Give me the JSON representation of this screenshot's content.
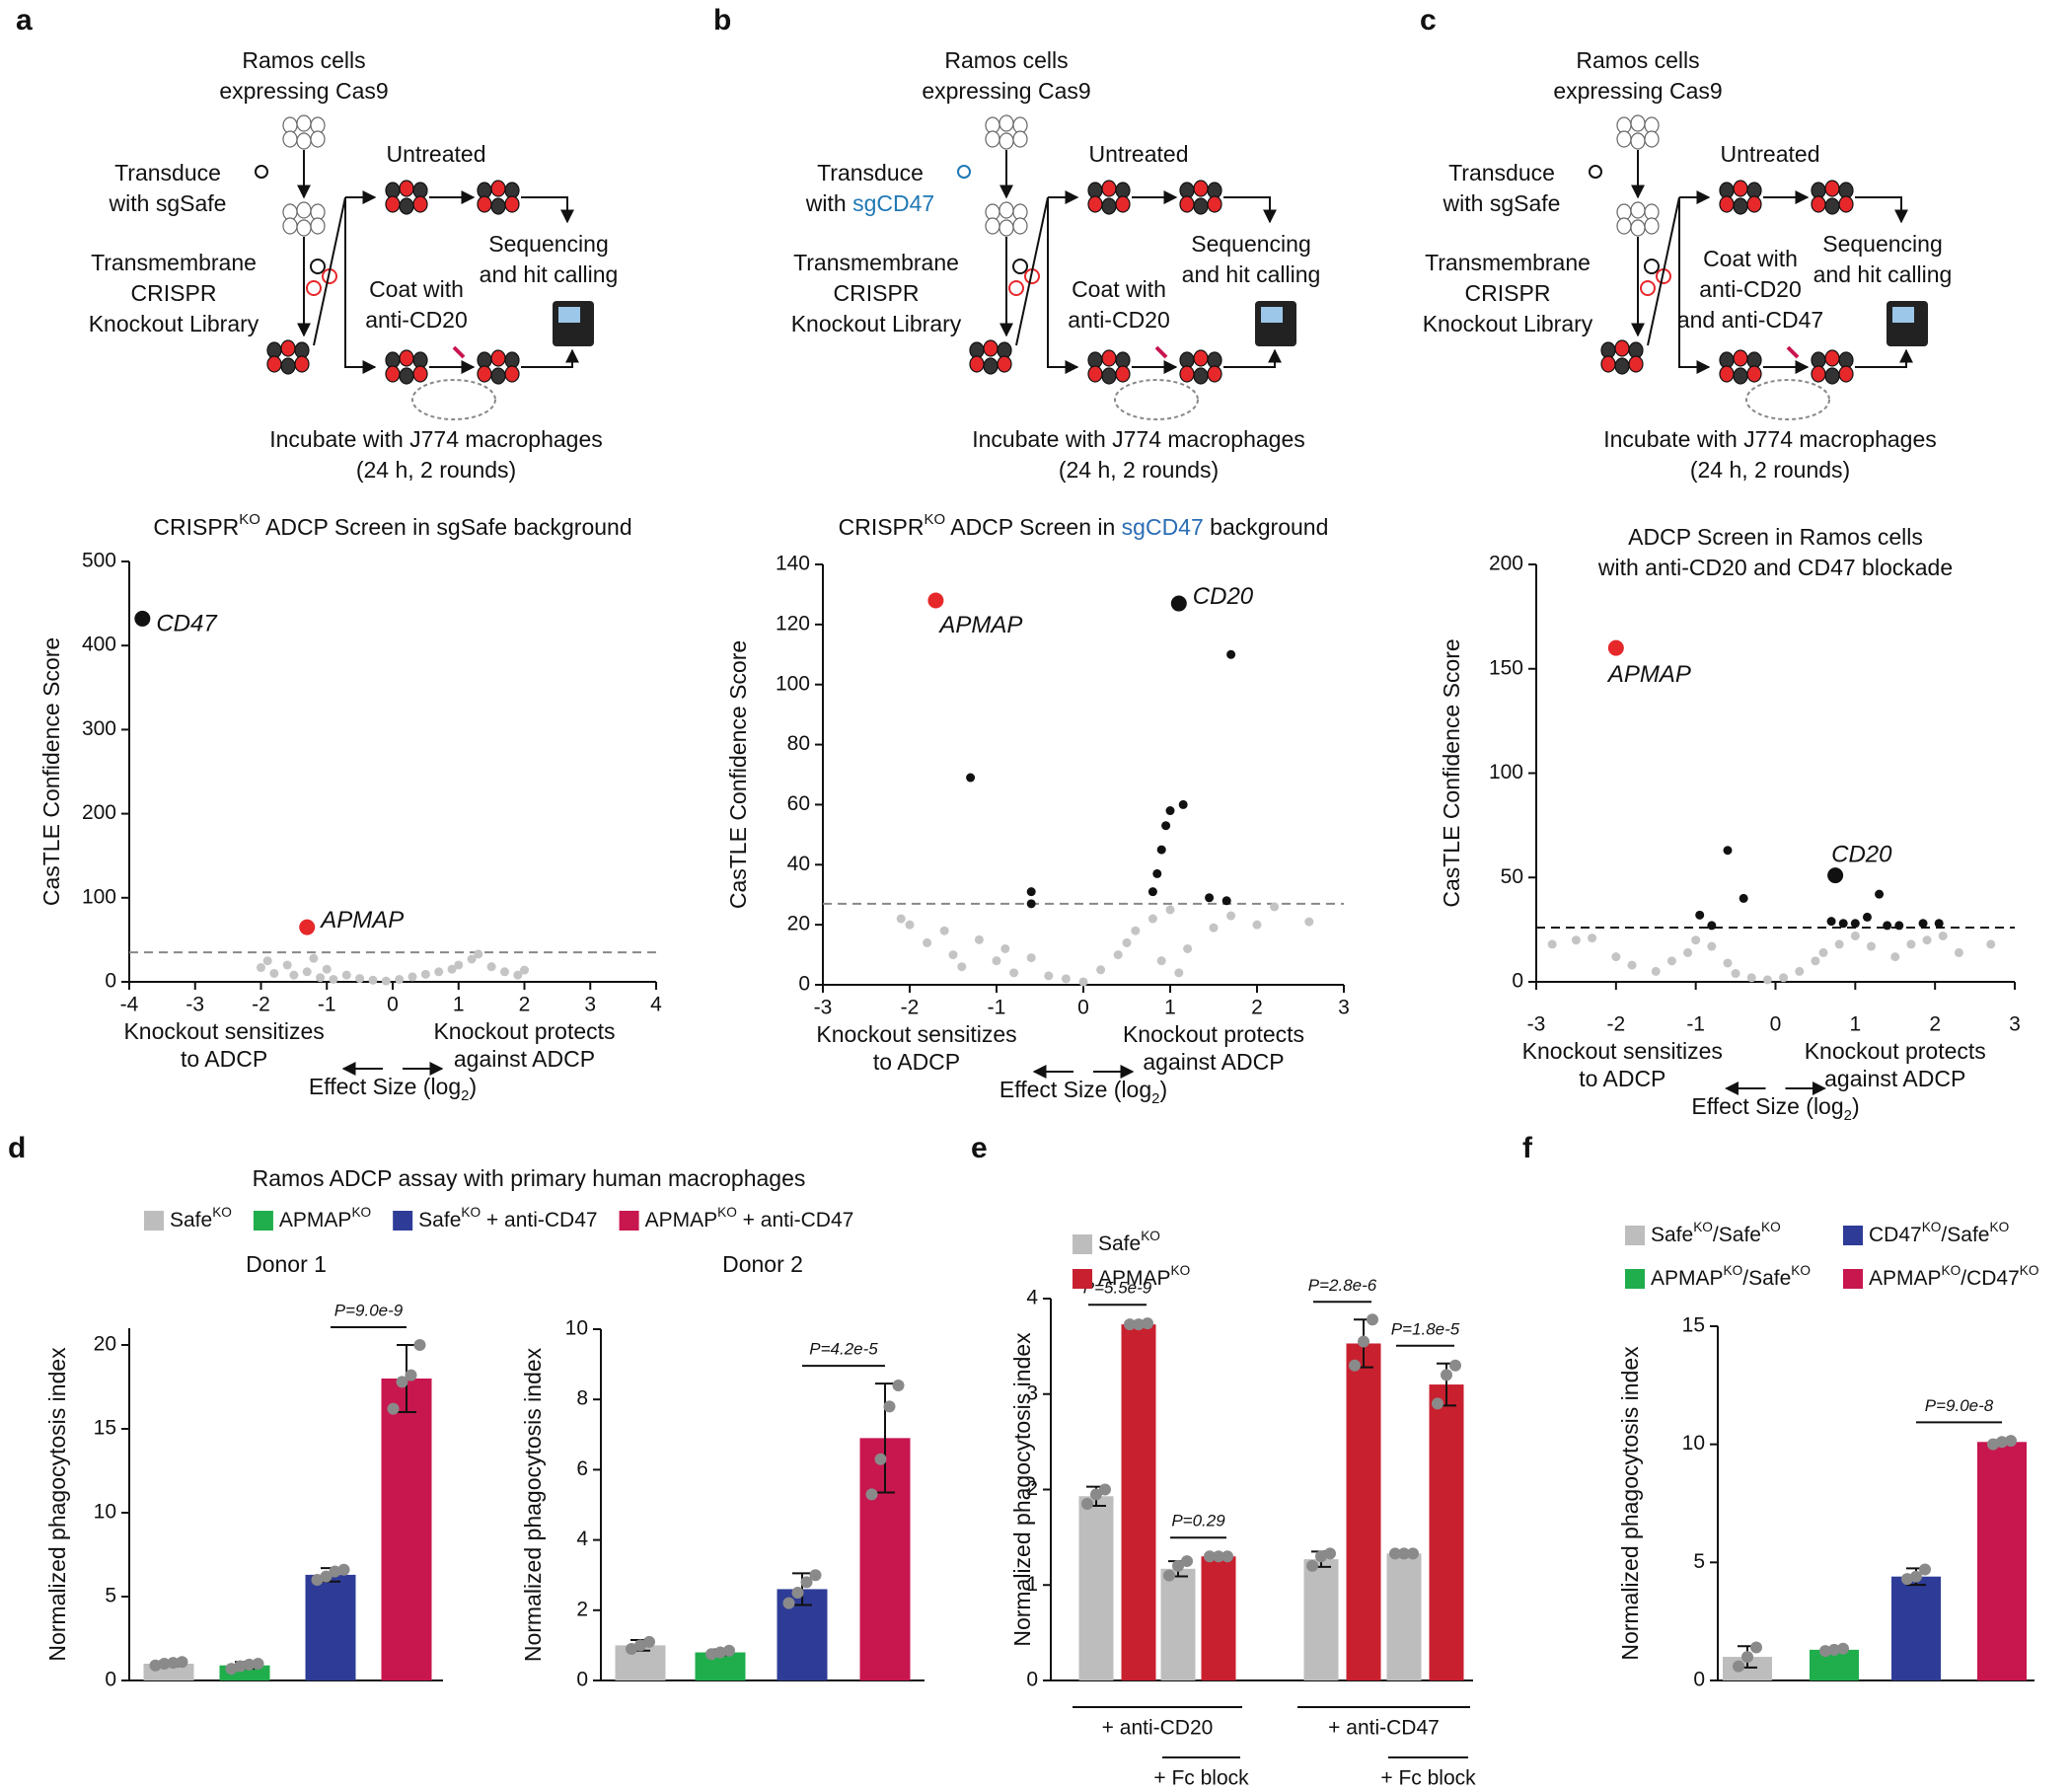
{
  "panel_labels": [
    "a",
    "b",
    "c",
    "d",
    "e",
    "f"
  ],
  "schematics": [
    {
      "origin": [
        "Ramos cells",
        "expressing Cas9"
      ],
      "transduce": [
        "Transduce",
        "with sgSafe"
      ],
      "library": [
        "Transmembrane",
        "CRISPR",
        "Knockout  Library"
      ],
      "untreated": [
        "Untreated"
      ],
      "coat": [
        "Coat with",
        "anti-CD20"
      ],
      "sequencing": [
        "Sequencing",
        "and hit calling"
      ],
      "incubate": [
        "Incubate with J774 macrophages",
        "(24 h, 2 rounds)"
      ]
    },
    {
      "origin": [
        "Ramos cells",
        "expressing Cas9"
      ],
      "transduce": [
        "Transduce",
        [
          {
            "text": "with "
          },
          {
            "text": "sgCD47",
            "color": "#1f78b4"
          }
        ]
      ],
      "library": [
        "Transmembrane",
        "CRISPR",
        "Knockout  Library"
      ],
      "untreated": [
        "Untreated"
      ],
      "coat": [
        "Coat with",
        "anti-CD20"
      ],
      "sequencing": [
        "Sequencing",
        "and hit calling"
      ],
      "incubate": [
        "Incubate with J774 macrophages",
        "(24 h, 2 rounds)"
      ]
    },
    {
      "origin": [
        "Ramos cells",
        "expressing Cas9"
      ],
      "transduce": [
        "Transduce",
        "with sgSafe"
      ],
      "library": [
        "Transmembrane",
        "CRISPR",
        "Knockout  Library"
      ],
      "untreated": [
        "Untreated"
      ],
      "coat": [
        "Coat with",
        "anti-CD20",
        "and anti-CD47"
      ],
      "sequencing": [
        "Sequencing",
        "and hit calling"
      ],
      "incubate": [
        "Incubate with J774 macrophages",
        "(24 h, 2 rounds)"
      ]
    }
  ],
  "chart_data": [
    {
      "type": "scatter",
      "title_lines": [
        [
          {
            "text": "CRISPR"
          },
          {
            "text": "KO",
            "sup": true
          },
          {
            "text": " ADCP Screen in sgSafe background"
          }
        ]
      ],
      "ylabel": "CasTLE Confidence Score",
      "xlabel": [
        {
          "text": "Effect Size (log"
        },
        {
          "text": "2",
          "sub": true
        },
        {
          "text": ")"
        }
      ],
      "notes_left": [
        "Knockout sensitizes",
        "to ADCP"
      ],
      "notes_right": [
        "Knockout protects",
        "against ADCP"
      ],
      "xlim": [
        -4,
        4
      ],
      "xticks": [
        -4,
        -3,
        -2,
        -1,
        0,
        1,
        2,
        3,
        4
      ],
      "ylim": [
        0,
        500
      ],
      "yticks": [
        0,
        100,
        200,
        300,
        400,
        500
      ],
      "threshold": 35,
      "series": [
        {
          "color": "#c4c4c4",
          "x": [
            -2.0,
            -1.9,
            -1.8,
            -1.6,
            -1.5,
            -1.3,
            -1.2,
            -1.1,
            -1.0,
            -0.9,
            -0.7,
            -0.5,
            -0.3,
            -0.1,
            0.1,
            0.3,
            0.5,
            0.7,
            0.9,
            1.0,
            1.2,
            1.3,
            1.5,
            1.7,
            1.9,
            2.0
          ],
          "values": [
            17,
            25,
            10,
            20,
            8,
            12,
            28,
            5,
            15,
            3,
            8,
            4,
            2,
            1,
            3,
            6,
            9,
            12,
            15,
            20,
            27,
            33,
            18,
            12,
            8,
            14
          ]
        },
        {
          "color": "#111111",
          "x": [
            -3.8
          ],
          "values": [
            432
          ],
          "labels": [
            "CD47"
          ]
        },
        {
          "color": "#e6282b",
          "x": [
            -1.3
          ],
          "values": [
            65
          ],
          "labels": [
            "APMAP"
          ]
        }
      ]
    },
    {
      "type": "scatter",
      "title_lines": [
        [
          {
            "text": "CRISPR"
          },
          {
            "text": "KO",
            "sup": true
          },
          {
            "text": " ADCP Screen in "
          },
          {
            "text": "sgCD47",
            "color": "#2a6db5"
          },
          {
            "text": " background"
          }
        ]
      ],
      "ylabel": "CasTLE Confidence Score",
      "xlabel": [
        {
          "text": "Effect Size (log"
        },
        {
          "text": "2",
          "sub": true
        },
        {
          "text": ")"
        }
      ],
      "notes_left": [
        "Knockout sensitizes",
        "to ADCP"
      ],
      "notes_right": [
        "Knockout protects",
        "against ADCP"
      ],
      "xlim": [
        -3,
        3
      ],
      "xticks": [
        -3,
        -2,
        -1,
        0,
        1,
        2,
        3
      ],
      "ylim": [
        0,
        140
      ],
      "yticks": [
        0,
        20,
        40,
        60,
        80,
        100,
        120,
        140
      ],
      "threshold": 27,
      "series": [
        {
          "color": "#c4c4c4",
          "x": [
            -2.1,
            -2.0,
            -1.8,
            -1.6,
            -1.5,
            -1.4,
            -1.2,
            -1.0,
            -0.9,
            -0.8,
            -0.6,
            -0.4,
            -0.2,
            0.0,
            0.2,
            0.4,
            0.5,
            0.6,
            0.8,
            0.9,
            1.0,
            1.1,
            1.2,
            1.5,
            1.7,
            2.0,
            2.2,
            2.6
          ],
          "values": [
            22,
            20,
            14,
            18,
            10,
            6,
            15,
            8,
            12,
            4,
            9,
            3,
            2,
            1,
            5,
            10,
            14,
            18,
            22,
            8,
            25,
            4,
            12,
            19,
            23,
            20,
            26,
            21
          ]
        },
        {
          "color": "#111111",
          "x": [
            1.1,
            1.7,
            -1.3,
            1.15,
            1.0,
            0.95,
            0.9,
            0.85,
            0.8,
            -0.6,
            -0.6,
            1.45,
            1.65
          ],
          "values": [
            127,
            110,
            69,
            60,
            58,
            53,
            45,
            37,
            31,
            31,
            27,
            29,
            28
          ],
          "labels": [
            "CD20",
            null,
            null,
            null,
            null,
            null,
            null,
            null,
            null,
            null,
            null,
            null,
            null
          ]
        },
        {
          "color": "#e6282b",
          "x": [
            -1.7
          ],
          "values": [
            128
          ],
          "labels": [
            "APMAP"
          ]
        }
      ]
    },
    {
      "type": "scatter",
      "title_lines": [
        "ADCP Screen in Ramos cells",
        "with anti-CD20 and CD47 blockade"
      ],
      "ylabel": "CasTLE Confidence Score",
      "xlabel": [
        {
          "text": "Effect Size (log"
        },
        {
          "text": "2",
          "sub": true
        },
        {
          "text": ")"
        }
      ],
      "notes_left": [
        "Knockout sensitizes",
        "to ADCP"
      ],
      "notes_right": [
        "Knockout protects",
        "against ADCP"
      ],
      "xlim": [
        -3,
        3
      ],
      "xticks": [
        -3,
        -2,
        -1,
        0,
        1,
        2,
        3
      ],
      "ylim": [
        0,
        200
      ],
      "yticks": [
        0,
        50,
        100,
        150,
        200
      ],
      "threshold": 26,
      "series": [
        {
          "color": "#c4c4c4",
          "x": [
            -2.8,
            -2.5,
            -2.3,
            -2.0,
            -1.8,
            -1.5,
            -1.3,
            -1.1,
            -1.0,
            -0.8,
            -0.6,
            -0.5,
            -0.3,
            -0.1,
            0.1,
            0.3,
            0.5,
            0.6,
            0.8,
            1.0,
            1.2,
            1.5,
            1.7,
            1.9,
            2.1,
            2.3,
            2.7
          ],
          "values": [
            18,
            20,
            21,
            12,
            8,
            5,
            10,
            14,
            20,
            17,
            9,
            4,
            2,
            1,
            2,
            5,
            10,
            14,
            18,
            22,
            17,
            12,
            18,
            20,
            22,
            14,
            18
          ]
        },
        {
          "color": "#111111",
          "x": [
            0.75,
            -0.6,
            -0.4,
            -0.95,
            -0.8,
            0.7,
            0.85,
            1.0,
            1.15,
            1.3,
            1.4,
            1.55,
            1.85,
            2.05
          ],
          "values": [
            51,
            63,
            40,
            32,
            27,
            29,
            28,
            28,
            31,
            42,
            27,
            27,
            28,
            28
          ],
          "labels": [
            "CD20",
            null,
            null,
            null,
            null,
            null,
            null,
            null,
            null,
            null,
            null,
            null,
            null,
            null
          ]
        },
        {
          "color": "#e6282b",
          "x": [
            -2.0
          ],
          "values": [
            160
          ],
          "labels": [
            "APMAP"
          ]
        }
      ]
    },
    {
      "type": "bar",
      "suptitle": "Ramos ADCP assay with primary human macrophages",
      "title": "Donor 1",
      "ylabel": "Normalized phagocytosis index",
      "ylim": [
        0,
        21
      ],
      "yticks": [
        0,
        5,
        10,
        15,
        20
      ],
      "annotations": [
        "P=9.0e-9"
      ],
      "series": [
        {
          "name": [
            {
              "text": "Safe"
            },
            {
              "text": "KO",
              "sup": true
            }
          ],
          "color": "#bdbdbd",
          "values": [
            1.0
          ],
          "errors": [
            0.15
          ],
          "replicates": [
            [
              0.9,
              1.0,
              1.05,
              1.1
            ]
          ]
        },
        {
          "name": [
            {
              "text": "APMAP"
            },
            {
              "text": "KO",
              "sup": true
            }
          ],
          "color": "#1fae4b",
          "values": [
            0.9
          ],
          "errors": [
            0.2
          ],
          "replicates": [
            [
              0.7,
              0.85,
              0.95,
              1.0
            ]
          ]
        },
        {
          "name": [
            {
              "text": "Safe"
            },
            {
              "text": "KO",
              "sup": true
            },
            {
              "text": " + anti-CD47"
            }
          ],
          "color": "#2e3c97",
          "values": [
            6.3
          ],
          "errors": [
            0.4
          ],
          "replicates": [
            [
              6.0,
              6.2,
              6.5,
              6.6
            ]
          ]
        },
        {
          "name": [
            {
              "text": "APMAP"
            },
            {
              "text": "KO",
              "sup": true
            },
            {
              "text": " + anti-CD47"
            }
          ],
          "color": "#c8164f",
          "values": [
            18.0
          ],
          "errors": [
            2.0
          ],
          "replicates": [
            [
              16.2,
              17.8,
              18.2,
              20.0
            ]
          ]
        }
      ]
    },
    {
      "type": "bar",
      "title": "Donor 2",
      "ylabel": "Normalized phagocytosis index",
      "ylim": [
        0,
        10
      ],
      "yticks": [
        0,
        2,
        4,
        6,
        8,
        10
      ],
      "annotations": [
        "P=4.2e-5"
      ],
      "series": [
        {
          "color": "#bdbdbd",
          "values": [
            1.0
          ],
          "errors": [
            0.15
          ],
          "replicates": [
            [
              0.9,
              1.0,
              1.1
            ]
          ]
        },
        {
          "color": "#1fae4b",
          "values": [
            0.8
          ],
          "errors": [
            0.08
          ],
          "replicates": [
            [
              0.75,
              0.8,
              0.85
            ]
          ]
        },
        {
          "color": "#2e3c97",
          "values": [
            2.6
          ],
          "errors": [
            0.45
          ],
          "replicates": [
            [
              2.2,
              2.5,
              2.8,
              3.0
            ]
          ]
        },
        {
          "color": "#c8164f",
          "values": [
            6.9
          ],
          "errors": [
            1.55
          ],
          "replicates": [
            [
              5.3,
              6.3,
              7.8,
              8.4
            ]
          ]
        }
      ]
    },
    {
      "type": "bar",
      "ylabel": "Normalized phagocytosis index",
      "ylim": [
        0,
        4
      ],
      "yticks": [
        0,
        1,
        2,
        3,
        4
      ],
      "annotations": [
        "P=5.5e-9",
        "P=0.29",
        "P=2.8e-6",
        "P=1.8e-5"
      ],
      "group_labels": [
        "+ anti-CD20",
        "+ Fc block",
        "+ anti-CD47",
        "+ Fc block"
      ],
      "series": [
        {
          "name": [
            {
              "text": "Safe"
            },
            {
              "text": "KO",
              "sup": true
            }
          ],
          "color": "#bdbdbd",
          "values": [
            1.93,
            1.17,
            1.27,
            1.33
          ],
          "errors": [
            0.1,
            0.08,
            0.08,
            0.01
          ],
          "replicates": [
            [
              1.85,
              1.95,
              2.0
            ],
            [
              1.1,
              1.2,
              1.25
            ],
            [
              1.2,
              1.3,
              1.33
            ],
            [
              1.33,
              1.33,
              1.33
            ]
          ]
        },
        {
          "name": [
            {
              "text": "APMAP"
            },
            {
              "text": "KO",
              "sup": true
            }
          ],
          "color": "#c8202f",
          "values": [
            3.73,
            1.3,
            3.53,
            3.1
          ],
          "errors": [
            0.02,
            0.01,
            0.25,
            0.22
          ],
          "replicates": [
            [
              3.73,
              3.73,
              3.74
            ],
            [
              1.3,
              1.3,
              1.3
            ],
            [
              3.3,
              3.55,
              3.78
            ],
            [
              2.9,
              3.2,
              3.3
            ]
          ]
        }
      ]
    },
    {
      "type": "bar",
      "ylabel": "Normalized phagocytosis index",
      "ylim": [
        0,
        15
      ],
      "yticks": [
        0,
        5,
        10,
        15
      ],
      "annotations": [
        "P=9.0e-8"
      ],
      "series": [
        {
          "name": [
            {
              "text": "Safe"
            },
            {
              "text": "KO",
              "sup": true
            },
            {
              "text": "/Safe"
            },
            {
              "text": "KO",
              "sup": true
            }
          ],
          "color": "#bdbdbd",
          "values": [
            1.0
          ],
          "errors": [
            0.45
          ],
          "replicates": [
            [
              0.6,
              1.0,
              1.4
            ]
          ]
        },
        {
          "name": [
            {
              "text": "APMAP"
            },
            {
              "text": "KO",
              "sup": true
            },
            {
              "text": "/Safe"
            },
            {
              "text": "KO",
              "sup": true
            }
          ],
          "color": "#1fae4b",
          "values": [
            1.3
          ],
          "errors": [
            0.05
          ],
          "replicates": [
            [
              1.25,
              1.3,
              1.35
            ]
          ]
        },
        {
          "name": [
            {
              "text": "CD47"
            },
            {
              "text": "KO",
              "sup": true
            },
            {
              "text": "/Safe"
            },
            {
              "text": "KO",
              "sup": true
            }
          ],
          "color": "#2e3c97",
          "values": [
            4.4
          ],
          "errors": [
            0.35
          ],
          "replicates": [
            [
              4.3,
              4.4,
              4.7
            ]
          ]
        },
        {
          "name": [
            {
              "text": "APMAP"
            },
            {
              "text": "KO",
              "sup": true
            },
            {
              "text": "/CD47"
            },
            {
              "text": "KO",
              "sup": true
            }
          ],
          "color": "#c8164f",
          "values": [
            10.1
          ],
          "errors": [
            0.08
          ],
          "replicates": [
            [
              10.0,
              10.1,
              10.15
            ]
          ]
        }
      ]
    }
  ]
}
